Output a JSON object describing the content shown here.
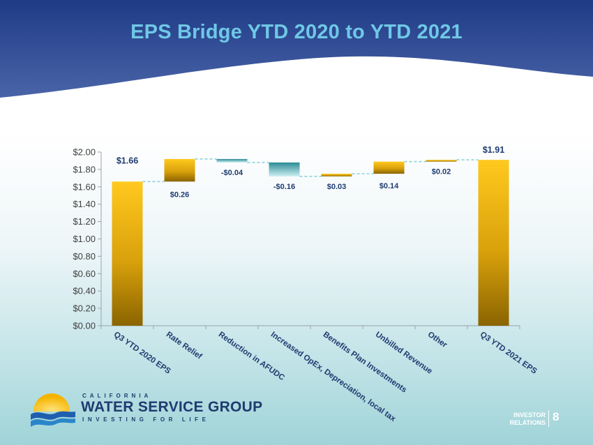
{
  "slide": {
    "title": "EPS Bridge YTD 2020 to YTD 2021",
    "page_number": "8",
    "footer_line1": "INVESTOR",
    "footer_line2": "RELATIONS"
  },
  "logo": {
    "top_text": "CALIFORNIA",
    "main_text": "WATER SERVICE GROUP",
    "tagline": "INVESTING FOR LIFE",
    "icon": "sun-over-water-icon"
  },
  "colors": {
    "header_navy": "#1f3b86",
    "title": "#6fc8e6",
    "gold_top": "#ffc91e",
    "gold_bottom": "#8a6400",
    "teal_top": "#2c8b95",
    "teal_bottom": "#cceff2",
    "connector": "#8fd3dc",
    "label_navy": "#1f3b70"
  },
  "chart_data": {
    "type": "waterfall",
    "categories": [
      "Q3 YTD 2020 EPS",
      "Rate Relief",
      "Reduction in AFUDC",
      "Increased OpEx, Depreciation, local tax",
      "Benefits Plan Investments",
      "Unbilled Revenue",
      "Other",
      "Q3 YTD 2021 EPS"
    ],
    "kinds": [
      "total",
      "increase",
      "decrease",
      "decrease",
      "increase",
      "increase",
      "increase",
      "total"
    ],
    "values": [
      1.66,
      0.26,
      -0.04,
      -0.16,
      0.03,
      0.14,
      0.02,
      1.91
    ],
    "labels": [
      "$1.66",
      "$0.26",
      "-$0.04",
      "-$0.16",
      "$0.03",
      "$0.14",
      "$0.02",
      "$1.91"
    ],
    "ylim": [
      0,
      2.0
    ],
    "yticks": [
      "$0.00",
      "$0.20",
      "$0.40",
      "$0.60",
      "$0.80",
      "$1.00",
      "$1.20",
      "$1.40",
      "$1.60",
      "$1.80",
      "$2.00"
    ],
    "grid": false,
    "legend": "none",
    "title": "",
    "xlabel": "",
    "ylabel": ""
  }
}
